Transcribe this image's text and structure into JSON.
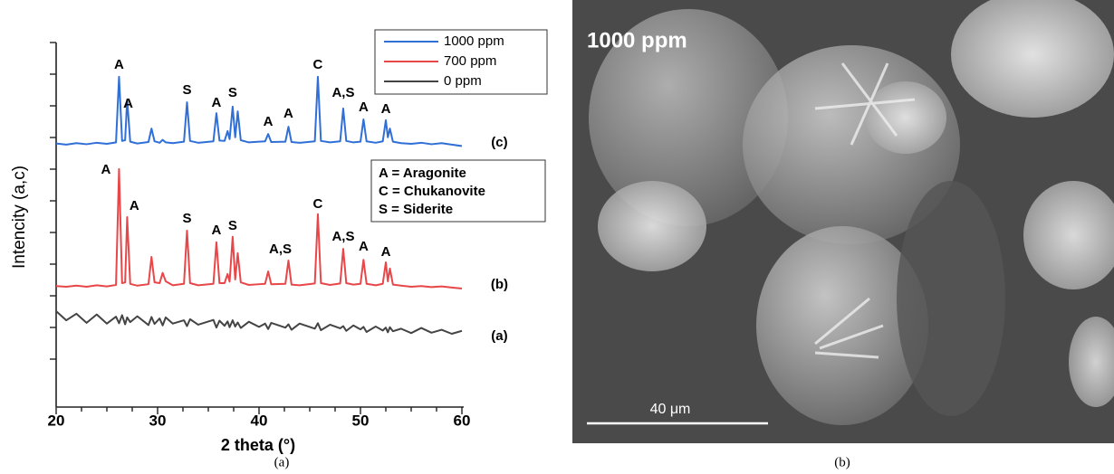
{
  "chart_data": {
    "type": "line",
    "xlabel": "2 theta (°)",
    "ylabel": "Intencity (a,c)",
    "xlim": [
      20,
      60
    ],
    "ylim": [
      0,
      100
    ],
    "xticks": [
      20,
      30,
      40,
      50,
      60
    ],
    "x": [
      20,
      21,
      22,
      23,
      24,
      25,
      25.9,
      26.2,
      26.5,
      26.8,
      27.0,
      27.3,
      28,
      29.1,
      29.4,
      29.7,
      30.2,
      30.5,
      30.8,
      31.5,
      32.6,
      32.9,
      33.2,
      34,
      35.5,
      35.8,
      36.1,
      36.6,
      36.9,
      37.1,
      37.4,
      37.65,
      37.9,
      38.2,
      39,
      40,
      40.6,
      40.9,
      41.2,
      42.6,
      42.9,
      43.2,
      44,
      45.5,
      45.8,
      46.1,
      47,
      48,
      48.3,
      48.6,
      49.3,
      50,
      50.3,
      50.6,
      51.5,
      52.2,
      52.5,
      52.7,
      52.9,
      53.2,
      54,
      55,
      56,
      57,
      58,
      59,
      60
    ],
    "series": [
      {
        "name": "1000 ppm",
        "color": "#2f6fd6",
        "values": [
          72.3,
          72.0,
          72.4,
          72.1,
          72.5,
          72.2,
          72.6,
          90.6,
          73.0,
          73.2,
          84.4,
          72.8,
          72.3,
          72.7,
          76.4,
          72.9,
          72.5,
          73.3,
          72.6,
          72.4,
          72.8,
          83.6,
          73.0,
          72.5,
          72.9,
          80.6,
          73.1,
          73.0,
          75.7,
          73.5,
          82.4,
          74.0,
          81.1,
          73.2,
          72.6,
          72.8,
          72.9,
          74.9,
          72.7,
          72.8,
          76.9,
          72.7,
          72.5,
          72.9,
          90.6,
          73.0,
          72.6,
          72.9,
          81.9,
          73.0,
          72.6,
          72.8,
          78.9,
          72.9,
          72.5,
          72.9,
          78.7,
          74.0,
          76.4,
          72.8,
          72.4,
          72.2,
          72.5,
          72.1,
          72.4,
          72.0,
          71.6
        ]
      },
      {
        "name": "700 ppm",
        "color": "#e8474a",
        "values": [
          33.2,
          33.0,
          33.3,
          33.0,
          33.4,
          33.1,
          33.5,
          65.3,
          34.0,
          34.2,
          52.1,
          33.8,
          33.3,
          33.7,
          41.2,
          34.2,
          34.0,
          36.8,
          34.5,
          33.4,
          33.8,
          48.4,
          34.0,
          33.4,
          33.8,
          45.2,
          34.0,
          34.0,
          36.5,
          34.4,
          46.7,
          35.0,
          42.2,
          34.2,
          33.5,
          33.7,
          33.8,
          37.2,
          33.7,
          33.8,
          40.2,
          33.6,
          33.4,
          33.9,
          52.9,
          34.0,
          33.5,
          33.9,
          43.4,
          34.0,
          33.6,
          33.8,
          40.4,
          33.8,
          33.4,
          33.8,
          39.7,
          34.5,
          38.0,
          33.6,
          33.3,
          33.0,
          33.2,
          32.9,
          33.1,
          32.8,
          32.5
        ]
      },
      {
        "name": "0 ppm",
        "color": "#444444",
        "values": [
          26.3,
          23.8,
          25.6,
          23.1,
          25.4,
          22.9,
          24.8,
          23.0,
          25.2,
          22.7,
          24.6,
          23.3,
          24.9,
          22.5,
          24.7,
          22.8,
          24.3,
          22.4,
          24.6,
          22.9,
          23.8,
          22.2,
          24.1,
          22.6,
          23.9,
          21.8,
          23.7,
          22.3,
          23.5,
          21.9,
          23.8,
          22.1,
          23.2,
          21.7,
          23.4,
          22.0,
          22.9,
          21.4,
          23.1,
          21.8,
          22.7,
          21.2,
          22.9,
          21.5,
          23.0,
          21.1,
          22.6,
          21.6,
          22.2,
          20.9,
          22.4,
          21.3,
          22.0,
          20.6,
          22.1,
          21.0,
          21.8,
          20.5,
          21.9,
          20.8,
          21.5,
          20.3,
          21.7,
          20.4,
          21.2,
          20.1,
          20.9
        ]
      }
    ],
    "annotations": [
      {
        "text": "A",
        "x": 26.2,
        "y": 93.8
      },
      {
        "text": "A",
        "x": 27.1,
        "y": 83.1
      },
      {
        "text": "S",
        "x": 32.9,
        "y": 86.8
      },
      {
        "text": "A",
        "x": 35.8,
        "y": 83.4
      },
      {
        "text": "S",
        "x": 37.4,
        "y": 86.1
      },
      {
        "text": "A",
        "x": 40.9,
        "y": 78.2
      },
      {
        "text": "A",
        "x": 42.9,
        "y": 80.4
      },
      {
        "text": "C",
        "x": 45.8,
        "y": 93.8
      },
      {
        "text": "A,S",
        "x": 48.3,
        "y": 86.1
      },
      {
        "text": "A",
        "x": 50.3,
        "y": 82.1
      },
      {
        "text": "A",
        "x": 52.5,
        "y": 81.6
      },
      {
        "text": "A",
        "x": 24.9,
        "y": 65.0
      },
      {
        "text": "A",
        "x": 27.7,
        "y": 55.1
      },
      {
        "text": "S",
        "x": 32.9,
        "y": 51.6
      },
      {
        "text": "A",
        "x": 35.8,
        "y": 48.4
      },
      {
        "text": "S",
        "x": 37.4,
        "y": 49.6
      },
      {
        "text": "A,S",
        "x": 42.1,
        "y": 43.2
      },
      {
        "text": "C",
        "x": 45.8,
        "y": 55.6
      },
      {
        "text": "A,S",
        "x": 48.3,
        "y": 46.6
      },
      {
        "text": "A",
        "x": 50.3,
        "y": 43.9
      },
      {
        "text": "A",
        "x": 52.5,
        "y": 42.4
      },
      {
        "text": "(c)",
        "x": 63.7,
        "y": 72.5
      },
      {
        "text": "(b)",
        "x": 63.7,
        "y": 33.5
      },
      {
        "text": "(a)",
        "x": 63.7,
        "y": 19.4
      }
    ],
    "key": [
      "A = Aragonite",
      "C = Chukanovite",
      "S = Siderite"
    ]
  },
  "captions": [
    "(a)",
    "(b)"
  ],
  "image": {
    "label": "1000 ppm",
    "scale_bar": "40 μm"
  }
}
